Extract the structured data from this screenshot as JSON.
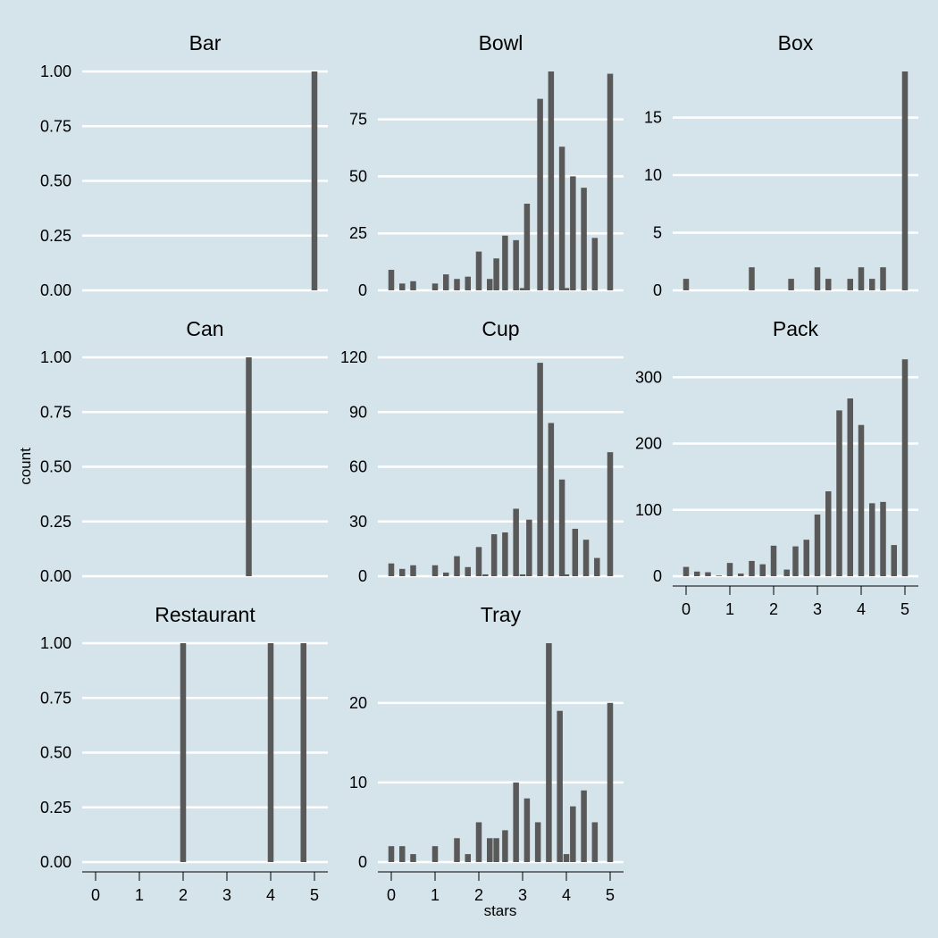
{
  "chart_data": {
    "type": "bar",
    "layout": "facet-wrap-3-columns",
    "xlabel": "stars",
    "ylabel": "count",
    "x_ticks": [
      0,
      1,
      2,
      3,
      4,
      5
    ],
    "bin_width": 0.25,
    "grid": "horizontal-major",
    "panels": [
      {
        "title": "Bar",
        "ylim": [
          0,
          1
        ],
        "y_ticks": [
          0,
          0.25,
          0.5,
          0.75,
          1
        ],
        "y_tick_labels": [
          "0.00",
          "0.25",
          "0.50",
          "0.75",
          "1.00"
        ],
        "bins": [
          [
            5.0,
            1
          ]
        ]
      },
      {
        "title": "Bowl",
        "ylim": [
          0,
          96
        ],
        "y_ticks": [
          0,
          25,
          50,
          75
        ],
        "y_tick_labels": [
          "0",
          "25",
          "50",
          "75"
        ],
        "bins": [
          [
            0.0,
            9
          ],
          [
            0.25,
            3
          ],
          [
            0.5,
            4
          ],
          [
            1.0,
            3
          ],
          [
            1.25,
            7
          ],
          [
            1.5,
            5
          ],
          [
            1.75,
            6
          ],
          [
            2.0,
            17
          ],
          [
            2.25,
            5
          ],
          [
            2.4,
            14
          ],
          [
            2.6,
            24
          ],
          [
            2.85,
            22
          ],
          [
            3.0,
            1
          ],
          [
            3.1,
            38
          ],
          [
            3.4,
            84
          ],
          [
            3.65,
            96
          ],
          [
            3.9,
            63
          ],
          [
            4.0,
            1
          ],
          [
            4.15,
            50
          ],
          [
            4.4,
            45
          ],
          [
            4.65,
            23
          ],
          [
            5.0,
            95
          ]
        ]
      },
      {
        "title": "Box",
        "ylim": [
          0,
          19
        ],
        "y_ticks": [
          0,
          5,
          10,
          15
        ],
        "y_tick_labels": [
          "0",
          "5",
          "10",
          "15"
        ],
        "bins": [
          [
            0.0,
            1
          ],
          [
            1.5,
            2
          ],
          [
            2.4,
            1
          ],
          [
            3.0,
            2
          ],
          [
            3.25,
            1
          ],
          [
            3.75,
            1
          ],
          [
            4.0,
            2
          ],
          [
            4.25,
            1
          ],
          [
            4.5,
            2
          ],
          [
            5.0,
            19
          ]
        ]
      },
      {
        "title": "Can",
        "ylim": [
          0,
          1
        ],
        "y_ticks": [
          0,
          0.25,
          0.5,
          0.75,
          1
        ],
        "y_tick_labels": [
          "0.00",
          "0.25",
          "0.50",
          "0.75",
          "1.00"
        ],
        "bins": [
          [
            3.5,
            1
          ]
        ]
      },
      {
        "title": "Cup",
        "ylim": [
          0,
          120
        ],
        "y_ticks": [
          0,
          30,
          60,
          90,
          120
        ],
        "y_tick_labels": [
          "0",
          "30",
          "60",
          "90",
          "120"
        ],
        "bins": [
          [
            0.0,
            7
          ],
          [
            0.25,
            4
          ],
          [
            0.5,
            6
          ],
          [
            1.0,
            6
          ],
          [
            1.25,
            2
          ],
          [
            1.5,
            11
          ],
          [
            1.75,
            5
          ],
          [
            2.0,
            16
          ],
          [
            2.15,
            1
          ],
          [
            2.35,
            23
          ],
          [
            2.6,
            24
          ],
          [
            2.85,
            37
          ],
          [
            3.0,
            1
          ],
          [
            3.15,
            31
          ],
          [
            3.4,
            117
          ],
          [
            3.65,
            84
          ],
          [
            3.9,
            53
          ],
          [
            4.0,
            1
          ],
          [
            4.2,
            26
          ],
          [
            4.45,
            20
          ],
          [
            4.7,
            10
          ],
          [
            5.0,
            68
          ]
        ]
      },
      {
        "title": "Pack",
        "ylim": [
          0,
          330
        ],
        "y_ticks": [
          0,
          100,
          200,
          300
        ],
        "y_tick_labels": [
          "0",
          "100",
          "200",
          "300"
        ],
        "bins": [
          [
            0.0,
            14
          ],
          [
            0.25,
            7
          ],
          [
            0.5,
            6
          ],
          [
            0.75,
            1
          ],
          [
            1.0,
            20
          ],
          [
            1.25,
            4
          ],
          [
            1.5,
            23
          ],
          [
            1.75,
            18
          ],
          [
            2.0,
            46
          ],
          [
            2.3,
            10
          ],
          [
            2.5,
            45
          ],
          [
            2.75,
            55
          ],
          [
            3.0,
            93
          ],
          [
            3.25,
            128
          ],
          [
            3.5,
            250
          ],
          [
            3.75,
            268
          ],
          [
            4.0,
            228
          ],
          [
            4.25,
            110
          ],
          [
            4.5,
            112
          ],
          [
            4.75,
            47
          ],
          [
            5.0,
            327
          ]
        ]
      },
      {
        "title": "Restaurant",
        "ylim": [
          0,
          1
        ],
        "y_ticks": [
          0,
          0.25,
          0.5,
          0.75,
          1
        ],
        "y_tick_labels": [
          "0.00",
          "0.25",
          "0.50",
          "0.75",
          "1.00"
        ],
        "bins": [
          [
            2.0,
            1
          ],
          [
            4.0,
            1
          ],
          [
            4.75,
            1
          ]
        ]
      },
      {
        "title": "Tray",
        "ylim": [
          0,
          27.5
        ],
        "y_ticks": [
          0,
          10,
          20
        ],
        "y_tick_labels": [
          "0",
          "10",
          "20"
        ],
        "bins": [
          [
            0.0,
            2
          ],
          [
            0.25,
            2
          ],
          [
            0.5,
            1
          ],
          [
            1.0,
            2
          ],
          [
            1.5,
            3
          ],
          [
            1.75,
            1
          ],
          [
            2.0,
            5
          ],
          [
            2.25,
            3
          ],
          [
            2.4,
            3
          ],
          [
            2.6,
            4
          ],
          [
            2.85,
            10
          ],
          [
            3.1,
            8
          ],
          [
            3.35,
            5
          ],
          [
            3.6,
            27.5
          ],
          [
            3.85,
            19
          ],
          [
            4.0,
            1
          ],
          [
            4.15,
            7
          ],
          [
            4.4,
            9
          ],
          [
            4.65,
            5
          ],
          [
            5.0,
            20
          ]
        ]
      }
    ]
  }
}
